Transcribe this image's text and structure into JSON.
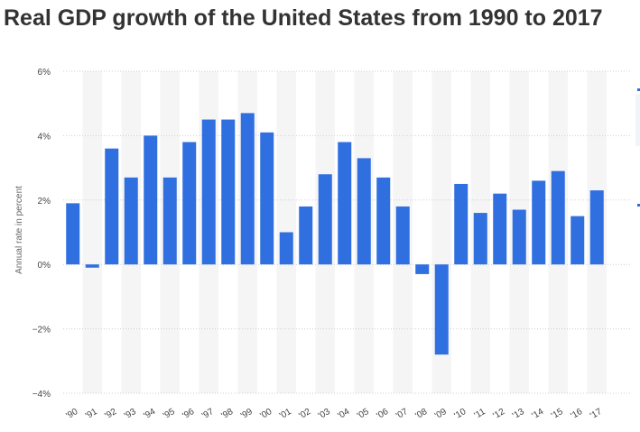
{
  "header": {
    "title": "Real GDP growth of the United States from 1990 to 2017"
  },
  "chart_data": {
    "type": "bar",
    "title": "Real GDP growth of the United States from 1990 to 2017",
    "xlabel": "",
    "ylabel": "Annual rate in percent",
    "categories": [
      "'90",
      "'91",
      "'92",
      "'93",
      "'94",
      "'95",
      "'96",
      "'97",
      "'98",
      "'99",
      "'00",
      "'01",
      "'02",
      "'03",
      "'04",
      "'05",
      "'06",
      "'07",
      "'08",
      "'09",
      "'10",
      "'11",
      "'12",
      "'13",
      "'14",
      "'15",
      "'16",
      "'17"
    ],
    "values": [
      1.9,
      -0.1,
      3.6,
      2.7,
      4.0,
      2.7,
      3.8,
      4.5,
      4.5,
      4.7,
      4.1,
      1.0,
      1.8,
      2.8,
      3.8,
      3.3,
      2.7,
      1.8,
      -0.3,
      -2.8,
      2.5,
      1.6,
      2.2,
      1.7,
      2.6,
      2.9,
      1.5,
      2.3
    ],
    "ylim": [
      -4,
      6
    ],
    "yticks": [
      6,
      4,
      2,
      0,
      -2,
      -4
    ],
    "ytick_labels": [
      "6%",
      "4%",
      "2%",
      "0%",
      "−2%",
      "−4%"
    ],
    "grid": true,
    "colors": {
      "bar": "#2f6fe0",
      "band": "#f5f5f5",
      "grid": "#cfcfcf",
      "axis_text": "#444444"
    }
  }
}
